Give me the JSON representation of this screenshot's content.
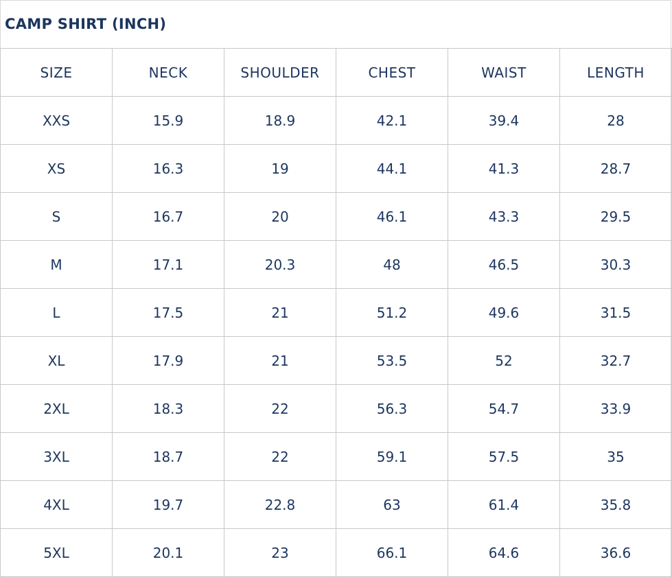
{
  "title": "CAMP SHIRT (INCH)",
  "columns": [
    "SIZE",
    "NECK",
    "SHOULDER",
    "CHEST",
    "WAIST",
    "LENGTH"
  ],
  "rows": [
    [
      "XXS",
      "15.9",
      "18.9",
      "42.1",
      "39.4",
      "28"
    ],
    [
      "XS",
      "16.3",
      "19",
      "44.1",
      "41.3",
      "28.7"
    ],
    [
      "S",
      "16.7",
      "20",
      "46.1",
      "43.3",
      "29.5"
    ],
    [
      "M",
      "17.1",
      "20.3",
      "48",
      "46.5",
      "30.3"
    ],
    [
      "L",
      "17.5",
      "21",
      "51.2",
      "49.6",
      "31.5"
    ],
    [
      "XL",
      "17.9",
      "21",
      "53.5",
      "52",
      "32.7"
    ],
    [
      "2XL",
      "18.3",
      "22",
      "56.3",
      "54.7",
      "33.9"
    ],
    [
      "3XL",
      "18.7",
      "22",
      "59.1",
      "57.5",
      "35"
    ],
    [
      "4XL",
      "19.7",
      "22.8",
      "63",
      "61.4",
      "35.8"
    ],
    [
      "5XL",
      "20.1",
      "23",
      "66.1",
      "64.6",
      "36.6"
    ]
  ],
  "colors": {
    "text": "#1c355e",
    "border": "#c8c8c8"
  }
}
